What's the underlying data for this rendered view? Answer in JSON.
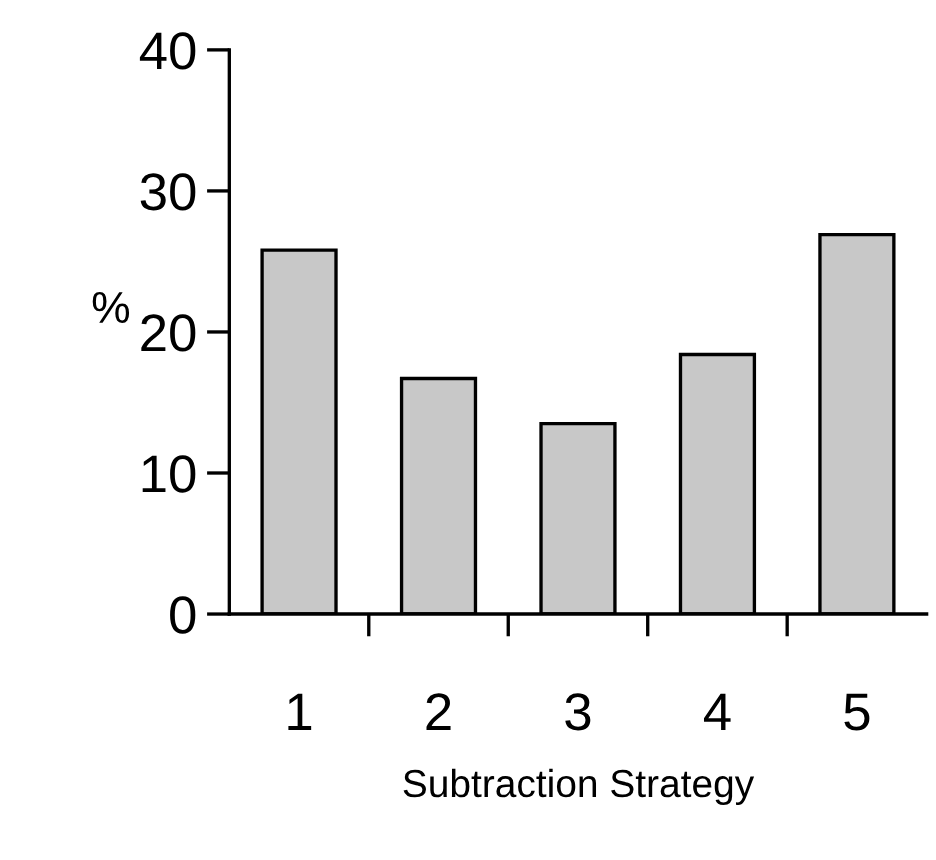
{
  "chart_data": {
    "type": "bar",
    "xlabel": "Subtraction Strategy",
    "ylabel": "%",
    "categories": [
      "1",
      "2",
      "3",
      "4",
      "5"
    ],
    "values": [
      25.8,
      16.7,
      13.5,
      18.4,
      26.9
    ],
    "color": "#c8c8c8",
    "ylim": [
      0,
      40
    ],
    "yticks": [
      0,
      10,
      20,
      30,
      40
    ],
    "grid": false
  }
}
